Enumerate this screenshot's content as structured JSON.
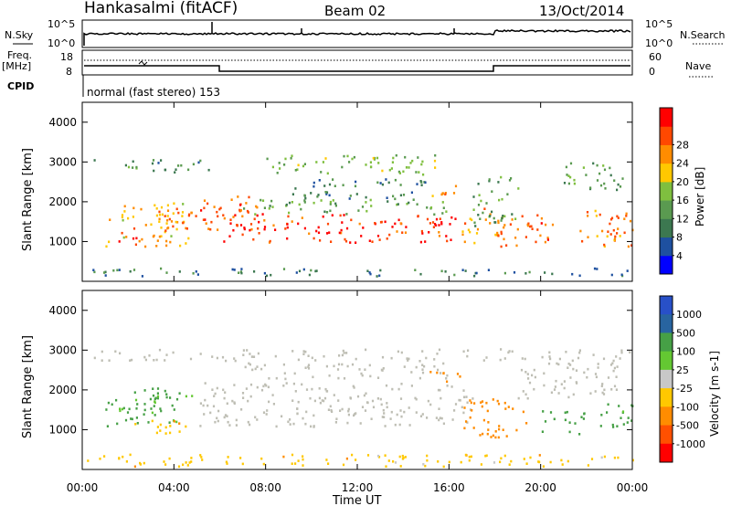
{
  "header": {
    "station": "Hankasalmi (fitACF)",
    "beam": "Beam 02",
    "date": "13/Oct/2014"
  },
  "top_panel": {
    "left_label": "N.Sky",
    "right_label": "N.Search",
    "left_ticks": [
      "10^5",
      "10^0"
    ],
    "right_ticks": [
      "10^5",
      "10^0"
    ]
  },
  "freq_panel": {
    "left_label_line1": "Freq.",
    "left_label_line2": "[MHz]",
    "left_ticks": [
      "18",
      "8"
    ],
    "right_label": "Nave",
    "right_ticks": [
      "60",
      "0"
    ],
    "cpid_label": "CPID",
    "cpid_text": "normal (fast stereo) 153"
  },
  "colors": {
    "power_scale": [
      "#0000ff",
      "#1e50a0",
      "#3c7850",
      "#5a9a50",
      "#7fbf3f",
      "#ffc800",
      "#ff8c00",
      "#ff4800",
      "#ff0000"
    ],
    "velocity_scale": [
      "#2850c8",
      "#2864a0",
      "#46a046",
      "#64c832",
      "#c8c8c8",
      "#ffc800",
      "#ff8c00",
      "#ff5000",
      "#ff0000"
    ],
    "ground_scatter": "#bebeb4"
  },
  "chart_data": [
    {
      "type": "heatmap",
      "panel": "power",
      "title": "",
      "ylabel": "Slant Range [km]",
      "xlabel": "",
      "xlim": [
        "00:00",
        "24:00"
      ],
      "ylim": [
        0,
        4500
      ],
      "yticks": [
        "1000",
        "2000",
        "3000",
        "4000"
      ],
      "xticks": [
        "00:00",
        "04:00",
        "08:00",
        "12:00",
        "16:00",
        "20:00",
        "00:00"
      ],
      "colorbar": {
        "label": "Power [dB]",
        "ticks": [
          "4",
          "8",
          "12",
          "16",
          "20",
          "24",
          "28"
        ],
        "range": [
          0,
          30
        ]
      },
      "regions": [
        {
          "t0": 0.5,
          "t1": 5.5,
          "r0": 2750,
          "r1": 3100,
          "level": 10
        },
        {
          "t0": 1.0,
          "t1": 4.5,
          "r0": 900,
          "r1": 2000,
          "level": 20
        },
        {
          "t0": 1.5,
          "t1": 2.5,
          "r0": 900,
          "r1": 1400,
          "level": 26
        },
        {
          "t0": 3.0,
          "t1": 5.0,
          "r0": 1100,
          "r1": 1900,
          "level": 22
        },
        {
          "t0": 5.0,
          "t1": 8.0,
          "r0": 1300,
          "r1": 2200,
          "level": 24
        },
        {
          "t0": 6.0,
          "t1": 16.5,
          "r0": 1000,
          "r1": 1700,
          "level": 27
        },
        {
          "t0": 7.0,
          "t1": 16.0,
          "r0": 1700,
          "r1": 2100,
          "level": 13
        },
        {
          "t0": 9.0,
          "t1": 15.0,
          "r0": 2100,
          "r1": 2600,
          "level": 9
        },
        {
          "t0": 8.0,
          "t1": 15.5,
          "r0": 2700,
          "r1": 3200,
          "level": 14
        },
        {
          "t0": 15.0,
          "t1": 16.5,
          "r0": 2150,
          "r1": 2500,
          "level": 21
        },
        {
          "t0": 16.5,
          "t1": 18.5,
          "r0": 900,
          "r1": 1900,
          "level": 20
        },
        {
          "t0": 17.0,
          "t1": 19.0,
          "r0": 1400,
          "r1": 2700,
          "level": 11
        },
        {
          "t0": 18.0,
          "t1": 20.5,
          "r0": 900,
          "r1": 1700,
          "level": 24
        },
        {
          "t0": 21.5,
          "t1": 24.0,
          "r0": 900,
          "r1": 1800,
          "level": 22
        },
        {
          "t0": 21.0,
          "t1": 24.0,
          "r0": 2300,
          "r1": 3000,
          "level": 12
        },
        {
          "t0": 0.0,
          "t1": 24.0,
          "r0": 150,
          "r1": 350,
          "level": 8
        }
      ]
    },
    {
      "type": "heatmap",
      "panel": "velocity",
      "title": "",
      "ylabel": "Slant Range [km]",
      "xlabel": "Time UT",
      "xlim": [
        "00:00",
        "24:00"
      ],
      "ylim": [
        0,
        4500
      ],
      "yticks": [
        "1000",
        "2000",
        "3000",
        "4000"
      ],
      "xticks": [
        "00:00",
        "04:00",
        "08:00",
        "12:00",
        "16:00",
        "20:00",
        "00:00"
      ],
      "colorbar": {
        "label": "Velocity [m s-1]",
        "ticks": [
          "1000",
          "500",
          "100",
          "25",
          "-25",
          "-100",
          "-500",
          "-1000"
        ]
      },
      "regions": [
        {
          "t0": 0.5,
          "t1": 24.0,
          "r0": 2750,
          "r1": 3050,
          "level": 0
        },
        {
          "t0": 5.0,
          "t1": 17.0,
          "r0": 1100,
          "r1": 2200,
          "level": 0
        },
        {
          "t0": 7.0,
          "t1": 16.0,
          "r0": 2300,
          "r1": 2700,
          "level": 0
        },
        {
          "t0": 19.0,
          "t1": 23.5,
          "r0": 1800,
          "r1": 2700,
          "level": 0
        },
        {
          "t0": 1.0,
          "t1": 5.0,
          "r0": 1100,
          "r1": 2100,
          "level": 150
        },
        {
          "t0": 2.0,
          "t1": 4.5,
          "r0": 900,
          "r1": 1300,
          "level": -80
        },
        {
          "t0": 16.5,
          "t1": 19.5,
          "r0": 800,
          "r1": 1800,
          "level": -300
        },
        {
          "t0": 20.0,
          "t1": 22.0,
          "r0": 900,
          "r1": 1500,
          "level": 300
        },
        {
          "t0": 22.5,
          "t1": 24.0,
          "r0": 1000,
          "r1": 1700,
          "level": 150
        },
        {
          "t0": 15.0,
          "t1": 16.5,
          "r0": 2200,
          "r1": 2500,
          "level": -300
        },
        {
          "t0": 0.0,
          "t1": 24.0,
          "r0": 100,
          "r1": 400,
          "level": -60
        }
      ]
    }
  ],
  "x_axis_title": "Time UT"
}
